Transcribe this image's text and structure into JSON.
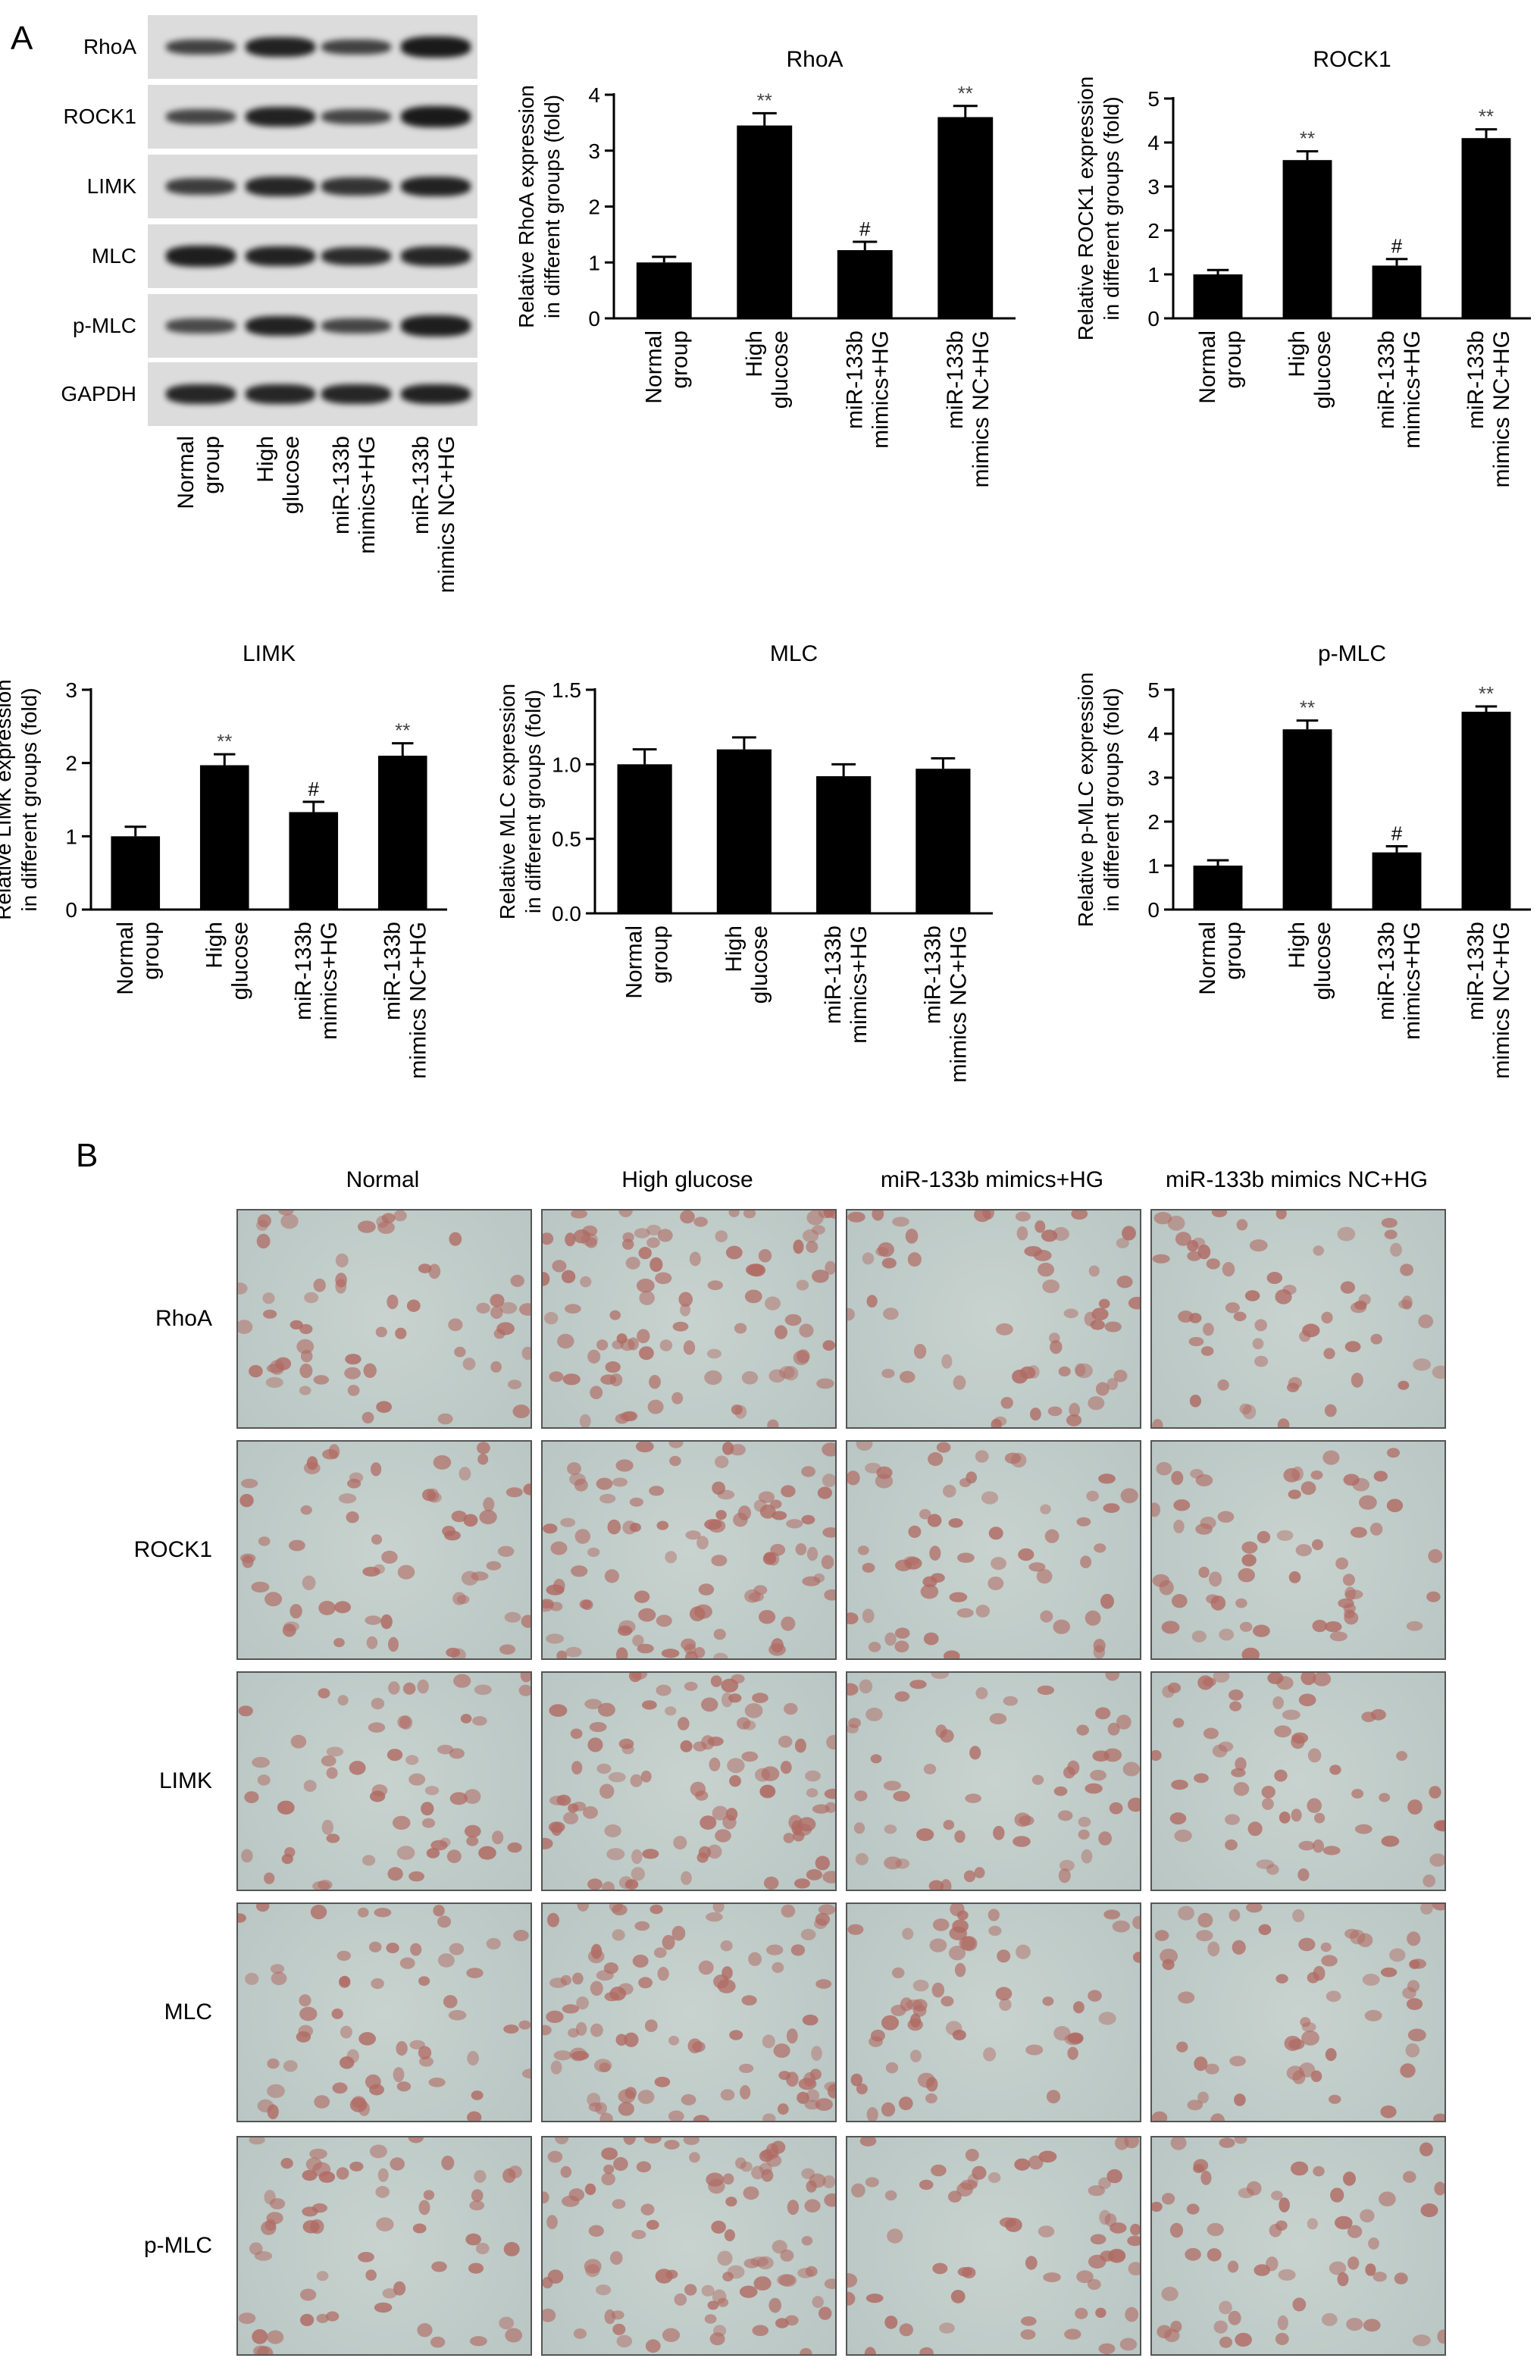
{
  "panel_a": {
    "letter": "A",
    "western_blot": {
      "proteins": [
        "RhoA",
        "ROCK1",
        "LIMK",
        "MLC",
        "p-MLC",
        "GAPDH"
      ],
      "lanes": [
        [
          "Normal",
          "group"
        ],
        [
          "High",
          "glucose"
        ],
        [
          "miR-133b",
          "mimics+HG"
        ],
        [
          "miR-133b",
          "mimics NC+HG"
        ]
      ]
    }
  },
  "panel_b": {
    "letter": "B",
    "column_titles": [
      "Normal",
      "High glucose",
      "miR-133b mimics+HG",
      "miR-133b mimics NC+HG"
    ],
    "row_labels": [
      "RhoA",
      "ROCK1",
      "LIMK",
      "MLC",
      "p-MLC"
    ]
  },
  "chart_data": [
    {
      "type": "bar",
      "title": "RhoA",
      "ylabel": [
        "Relative RhoA expression",
        "in different groups (fold)"
      ],
      "categories": [
        [
          "Normal",
          "group"
        ],
        [
          "High",
          "glucose"
        ],
        [
          "miR-133b",
          "mimics+HG"
        ],
        [
          "miR-133b",
          "mimics NC+HG"
        ]
      ],
      "values": [
        1.0,
        3.45,
        1.22,
        3.6
      ],
      "errors": [
        0.1,
        0.22,
        0.15,
        0.2
      ],
      "annotations": [
        "",
        "**",
        "#",
        "**"
      ],
      "ylim": [
        0,
        4
      ],
      "yticks": [
        0,
        1,
        2,
        3,
        4
      ],
      "ytick_labels": [
        "0",
        "1",
        "2",
        "3",
        "4"
      ]
    },
    {
      "type": "bar",
      "title": "ROCK1",
      "ylabel": [
        "Relative ROCK1 expression",
        "in different groups (fold)"
      ],
      "categories": [
        [
          "Normal",
          "group"
        ],
        [
          "High",
          "glucose"
        ],
        [
          "miR-133b",
          "mimics+HG"
        ],
        [
          "miR-133b",
          "mimics NC+HG"
        ]
      ],
      "values": [
        1.0,
        3.6,
        1.2,
        4.1
      ],
      "errors": [
        0.1,
        0.2,
        0.15,
        0.2
      ],
      "annotations": [
        "",
        "**",
        "#",
        "**"
      ],
      "ylim": [
        0,
        5
      ],
      "yticks": [
        0,
        1,
        2,
        3,
        4,
        5
      ],
      "ytick_labels": [
        "0",
        "1",
        "2",
        "3",
        "4",
        "5"
      ]
    },
    {
      "type": "bar",
      "title": "LIMK",
      "ylabel": [
        "Relative LIMK expression",
        "in different groups (fold)"
      ],
      "categories": [
        [
          "Normal",
          "group"
        ],
        [
          "High",
          "glucose"
        ],
        [
          "miR-133b",
          "mimics+HG"
        ],
        [
          "miR-133b",
          "mimics NC+HG"
        ]
      ],
      "values": [
        1.0,
        1.97,
        1.33,
        2.1
      ],
      "errors": [
        0.13,
        0.15,
        0.14,
        0.17
      ],
      "annotations": [
        "",
        "**",
        "#",
        "**"
      ],
      "ylim": [
        0,
        3
      ],
      "yticks": [
        0,
        1,
        2,
        3
      ],
      "ytick_labels": [
        "0",
        "1",
        "2",
        "3"
      ]
    },
    {
      "type": "bar",
      "title": "MLC",
      "ylabel": [
        "Relative MLC expression",
        "in different groups (fold)"
      ],
      "categories": [
        [
          "Normal",
          "group"
        ],
        [
          "High",
          "glucose"
        ],
        [
          "miR-133b",
          "mimics+HG"
        ],
        [
          "miR-133b",
          "mimics NC+HG"
        ]
      ],
      "values": [
        1.0,
        1.1,
        0.92,
        0.97
      ],
      "errors": [
        0.1,
        0.08,
        0.08,
        0.07
      ],
      "annotations": [
        "",
        "",
        "",
        ""
      ],
      "ylim": [
        0,
        1.5
      ],
      "yticks": [
        0,
        0.5,
        1.0,
        1.5
      ],
      "ytick_labels": [
        "0.0",
        "0.5",
        "1.0",
        "1.5"
      ]
    },
    {
      "type": "bar",
      "title": "p-MLC",
      "ylabel": [
        "Relative p-MLC expression",
        "in different groups (fold)"
      ],
      "categories": [
        [
          "Normal",
          "group"
        ],
        [
          "High",
          "glucose"
        ],
        [
          "miR-133b",
          "mimics+HG"
        ],
        [
          "miR-133b",
          "mimics NC+HG"
        ]
      ],
      "values": [
        1.0,
        4.1,
        1.3,
        4.5
      ],
      "errors": [
        0.12,
        0.2,
        0.14,
        0.12
      ],
      "annotations": [
        "",
        "**",
        "#",
        "**"
      ],
      "ylim": [
        0,
        5
      ],
      "yticks": [
        0,
        1,
        2,
        3,
        4,
        5
      ],
      "ytick_labels": [
        "0",
        "1",
        "2",
        "3",
        "4",
        "5"
      ]
    }
  ]
}
